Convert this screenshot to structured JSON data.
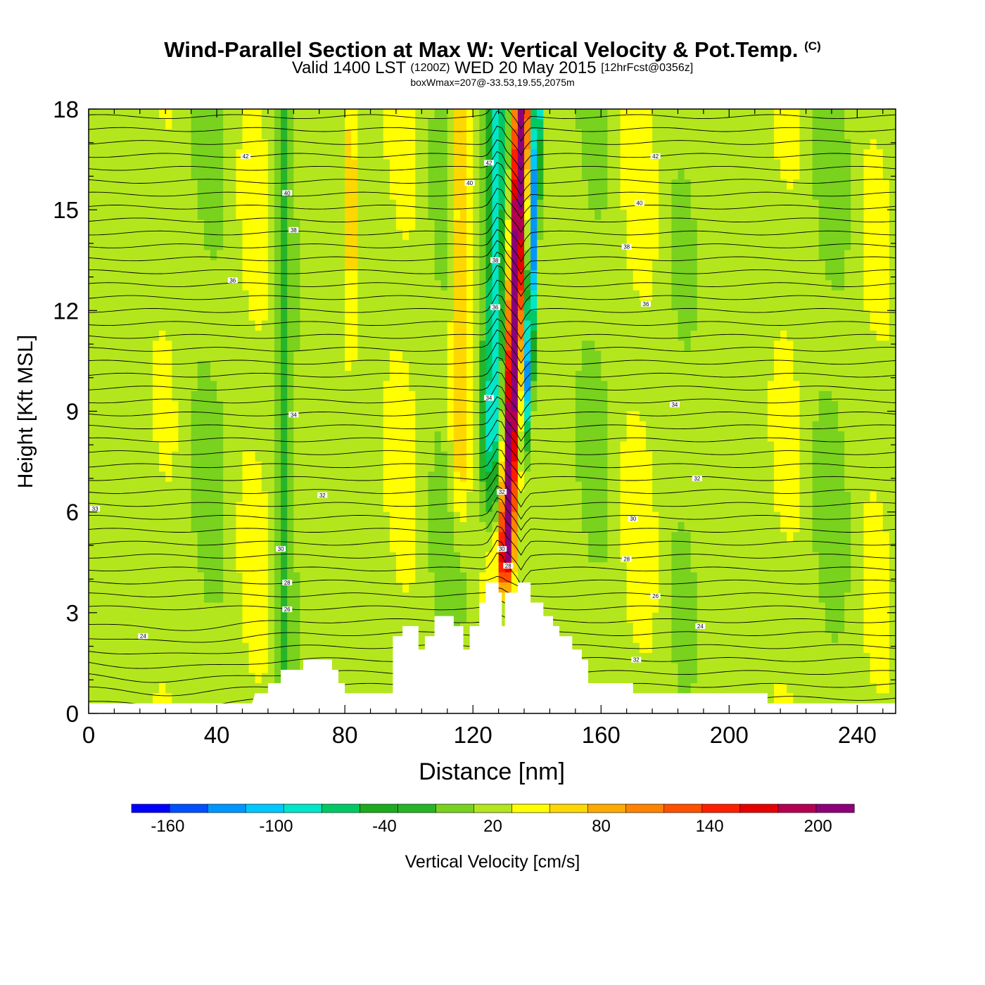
{
  "title": {
    "main": "Wind-Parallel Section at Max W: Vertical Velocity & Pot.Temp.",
    "mark": "(C)",
    "valid_prefix": "Valid 1400 LST",
    "valid_utc": "(1200Z)",
    "valid_date": "WED 20 May 2015",
    "forecast": "[12hrFcst@0356z]",
    "sub": "boxWmax=207@-33.53,19.55,2075m"
  },
  "chart_data": {
    "type": "heatmap",
    "title": "Wind-Parallel Section at Max W: Vertical Velocity & Pot.Temp.",
    "xlabel": "Distance [nm]",
    "ylabel": "Height [Kft MSL]",
    "xlim": [
      0,
      252
    ],
    "ylim": [
      0,
      18
    ],
    "x_ticks": [
      0,
      40,
      80,
      120,
      160,
      200,
      240
    ],
    "y_ticks": [
      0,
      3,
      6,
      9,
      12,
      15,
      18
    ],
    "colorbar": {
      "label": "Vertical Velocity [cm/s]",
      "levels": [
        -180,
        -160,
        -140,
        -120,
        -100,
        -80,
        -60,
        -40,
        -20,
        0,
        20,
        40,
        60,
        80,
        100,
        120,
        140,
        160,
        180,
        200,
        220
      ],
      "tick_labels": [
        "-160",
        "-100",
        "-40",
        "20",
        "80",
        "140",
        "200"
      ],
      "tick_values": [
        -160,
        -100,
        -40,
        20,
        80,
        140,
        200
      ],
      "colors": [
        "#0000ff",
        "#0050ff",
        "#0096ff",
        "#00c8ff",
        "#00e6c8",
        "#00c864",
        "#1eaa1e",
        "#28b428",
        "#78d21e",
        "#b4e61e",
        "#ffff00",
        "#ffd700",
        "#ffaa00",
        "#ff8200",
        "#ff5000",
        "#ff1e00",
        "#e60000",
        "#b40050",
        "#8c0078"
      ]
    },
    "w_max": 207,
    "w_max_location": "-33.53,19.55,2075m",
    "updraft_core_x": 132,
    "downdraft_band_x": 126,
    "theta_contour_labels": [
      {
        "label": "42",
        "x": 49,
        "y": 16.6
      },
      {
        "label": "40",
        "x": 62,
        "y": 15.5
      },
      {
        "label": "38",
        "x": 64,
        "y": 14.4
      },
      {
        "label": "36",
        "x": 45,
        "y": 12.9
      },
      {
        "label": "34",
        "x": 64,
        "y": 8.9
      },
      {
        "label": "32",
        "x": 73,
        "y": 6.5
      },
      {
        "label": "30",
        "x": 60,
        "y": 4.9
      },
      {
        "label": "28",
        "x": 62,
        "y": 3.9
      },
      {
        "label": "26",
        "x": 62,
        "y": 3.1
      },
      {
        "label": "24",
        "x": 17,
        "y": 2.3
      },
      {
        "label": "33",
        "x": 2,
        "y": 6.1
      },
      {
        "label": "42",
        "x": 125,
        "y": 16.4
      },
      {
        "label": "40",
        "x": 119,
        "y": 15.8
      },
      {
        "label": "38",
        "x": 127,
        "y": 13.5
      },
      {
        "label": "36",
        "x": 127,
        "y": 12.1
      },
      {
        "label": "34",
        "x": 125,
        "y": 9.4
      },
      {
        "label": "32",
        "x": 129,
        "y": 6.6
      },
      {
        "label": "30",
        "x": 129,
        "y": 4.9
      },
      {
        "label": "28",
        "x": 131,
        "y": 4.4
      },
      {
        "label": "42",
        "x": 177,
        "y": 16.6
      },
      {
        "label": "40",
        "x": 172,
        "y": 15.2
      },
      {
        "label": "38",
        "x": 168,
        "y": 13.9
      },
      {
        "label": "36",
        "x": 174,
        "y": 12.2
      },
      {
        "label": "34",
        "x": 183,
        "y": 9.2
      },
      {
        "label": "32",
        "x": 190,
        "y": 7.0
      },
      {
        "label": "30",
        "x": 170,
        "y": 5.8
      },
      {
        "label": "28",
        "x": 168,
        "y": 4.6
      },
      {
        "label": "26",
        "x": 177,
        "y": 3.5
      },
      {
        "label": "24",
        "x": 191,
        "y": 2.6
      },
      {
        "label": "32",
        "x": 171,
        "y": 1.6
      }
    ],
    "terrain": [
      [
        0,
        0.3
      ],
      [
        51,
        0.3
      ],
      [
        52,
        0.6
      ],
      [
        56,
        0.6
      ],
      [
        56,
        0.9
      ],
      [
        60,
        0.9
      ],
      [
        60,
        1.3
      ],
      [
        67,
        1.3
      ],
      [
        67,
        1.6
      ],
      [
        76,
        1.6
      ],
      [
        76,
        1.3
      ],
      [
        78,
        1.3
      ],
      [
        78,
        0.9
      ],
      [
        80,
        0.9
      ],
      [
        80,
        0.6
      ],
      [
        95,
        0.6
      ],
      [
        95,
        2.3
      ],
      [
        98,
        2.3
      ],
      [
        98,
        2.6
      ],
      [
        103,
        2.6
      ],
      [
        103,
        1.9
      ],
      [
        105,
        1.9
      ],
      [
        105,
        2.3
      ],
      [
        108,
        2.3
      ],
      [
        108,
        2.9
      ],
      [
        114,
        2.9
      ],
      [
        114,
        2.6
      ],
      [
        117,
        2.6
      ],
      [
        117,
        1.9
      ],
      [
        119,
        1.9
      ],
      [
        119,
        2.6
      ],
      [
        122,
        2.6
      ],
      [
        122,
        3.3
      ],
      [
        124,
        3.3
      ],
      [
        124,
        3.9
      ],
      [
        128,
        3.9
      ],
      [
        128,
        3.6
      ],
      [
        129,
        3.6
      ],
      [
        129,
        2.6
      ],
      [
        130,
        2.6
      ],
      [
        130,
        3.6
      ],
      [
        134,
        3.6
      ],
      [
        134,
        3.9
      ],
      [
        138,
        3.9
      ],
      [
        138,
        3.3
      ],
      [
        142,
        3.3
      ],
      [
        142,
        2.9
      ],
      [
        145,
        2.9
      ],
      [
        145,
        2.6
      ],
      [
        147,
        2.6
      ],
      [
        147,
        2.3
      ],
      [
        151,
        2.3
      ],
      [
        151,
        1.9
      ],
      [
        154,
        1.9
      ],
      [
        154,
        1.6
      ],
      [
        156,
        1.6
      ],
      [
        156,
        0.9
      ],
      [
        170,
        0.9
      ],
      [
        170,
        0.6
      ],
      [
        212,
        0.6
      ],
      [
        212,
        0.3
      ],
      [
        252,
        0.3
      ]
    ]
  }
}
